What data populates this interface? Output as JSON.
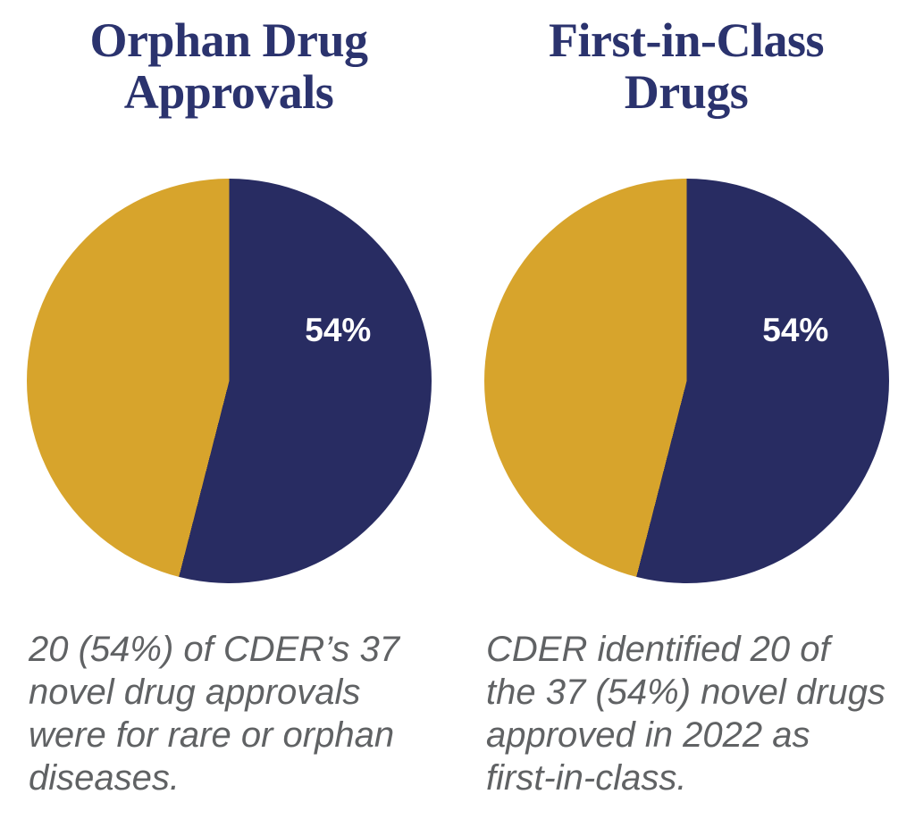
{
  "colors": {
    "slice_primary": "#282c62",
    "slice_secondary": "#d7a42c",
    "title_text": "#2b336e",
    "caption_text": "#606264",
    "slice_label_text": "#ffffff",
    "background": "#ffffff"
  },
  "chart_data": [
    {
      "type": "pie",
      "title": "Orphan Drug Approvals",
      "title_lines": [
        "Orphan Drug",
        "Approvals"
      ],
      "slices": [
        {
          "label": "54%",
          "value": 54,
          "color": "#282c62"
        },
        {
          "label": "",
          "value": 46,
          "color": "#d7a42c"
        }
      ],
      "start_angle_deg": 0,
      "direction": "clockwise",
      "legend": "none",
      "caption": "20 (54%) of CDER’s 37 novel drug approvals were for rare or orphan diseases.",
      "caption_lines": [
        "20 (54%) of CDER’s 37",
        "novel drug approvals",
        "were for rare or orphan",
        "diseases."
      ]
    },
    {
      "type": "pie",
      "title": "First-in-Class Drugs",
      "title_lines": [
        "First-in-Class",
        "Drugs"
      ],
      "slices": [
        {
          "label": "54%",
          "value": 54,
          "color": "#282c62"
        },
        {
          "label": "",
          "value": 46,
          "color": "#d7a42c"
        }
      ],
      "start_angle_deg": 0,
      "direction": "clockwise",
      "legend": "none",
      "caption": "CDER identified 20 of the 37 (54%) novel drugs approved in 2022 as first-in-class.",
      "caption_lines": [
        "CDER identified 20 of",
        "the 37 (54%) novel drugs",
        "approved in 2022 as",
        "first-in-class."
      ]
    }
  ]
}
